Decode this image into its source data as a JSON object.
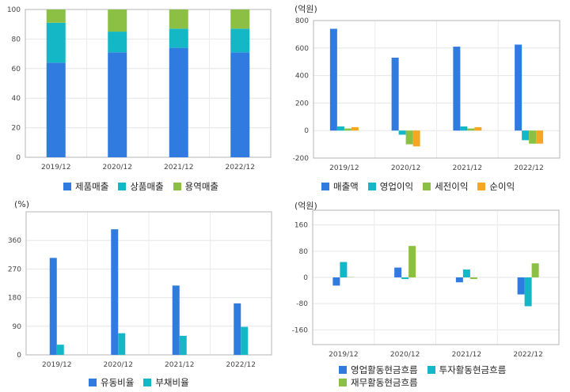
{
  "chart_data": [
    {
      "type": "bar",
      "stacked": true,
      "unit": "",
      "categories": [
        "2019/12",
        "2020/12",
        "2021/12",
        "2022/12"
      ],
      "ylim": [
        0,
        100
      ],
      "yticks": [
        0,
        20,
        40,
        60,
        80,
        100
      ],
      "series": [
        {
          "name": "제품매출",
          "color": "#2f7be0",
          "values": [
            64,
            71,
            74,
            71
          ]
        },
        {
          "name": "상품매출",
          "color": "#14b7c6",
          "values": [
            27,
            14,
            13,
            16
          ]
        },
        {
          "name": "용역매출",
          "color": "#8cc044",
          "values": [
            9,
            15,
            13,
            13
          ]
        }
      ],
      "legend": "bottom",
      "grid": true
    },
    {
      "type": "bar",
      "unit": "(억원)",
      "categories": [
        "2019/12",
        "2020/12",
        "2021/12",
        "2022/12"
      ],
      "ylim": [
        -200,
        800
      ],
      "yticks": [
        -200,
        0,
        200,
        400,
        600,
        800
      ],
      "series": [
        {
          "name": "매출액",
          "color": "#2f7be0",
          "values": [
            740,
            530,
            610,
            625
          ]
        },
        {
          "name": "영업이익",
          "color": "#14b7c6",
          "values": [
            30,
            -30,
            30,
            -70
          ]
        },
        {
          "name": "세전이익",
          "color": "#8cc044",
          "values": [
            15,
            -100,
            15,
            -95
          ]
        },
        {
          "name": "순이익",
          "color": "#f5a623",
          "values": [
            25,
            -115,
            25,
            -95
          ]
        }
      ],
      "legend": "bottom",
      "grid": true
    },
    {
      "type": "bar",
      "unit": "(%)",
      "categories": [
        "2019/12",
        "2020/12",
        "2021/12",
        "2022/12"
      ],
      "ylim": [
        0,
        450
      ],
      "yticks": [
        0,
        90,
        180,
        270,
        360
      ],
      "series": [
        {
          "name": "유동비율",
          "color": "#2f7be0",
          "values": [
            305,
            395,
            218,
            162
          ]
        },
        {
          "name": "부채비율",
          "color": "#14b7c6",
          "values": [
            32,
            68,
            60,
            88
          ]
        }
      ],
      "legend": "bottom",
      "grid": true
    },
    {
      "type": "bar",
      "unit": "(억원)",
      "categories": [
        "2019/12",
        "2020/12",
        "2021/12",
        "2022/12"
      ],
      "ylim": [
        -205,
        205
      ],
      "yticks": [
        -160,
        -80,
        0,
        80,
        160
      ],
      "series": [
        {
          "name": "영업활동현금흐름",
          "color": "#2f7be0",
          "values": [
            -25,
            30,
            -15,
            -52
          ]
        },
        {
          "name": "투자활동현금흐름",
          "color": "#14b7c6",
          "values": [
            47,
            -5,
            24,
            -88
          ]
        },
        {
          "name": "재무활동현금흐름",
          "color": "#8cc044",
          "values": [
            1,
            96,
            -5,
            43
          ]
        }
      ],
      "legend": "bottom",
      "grid": true
    }
  ]
}
